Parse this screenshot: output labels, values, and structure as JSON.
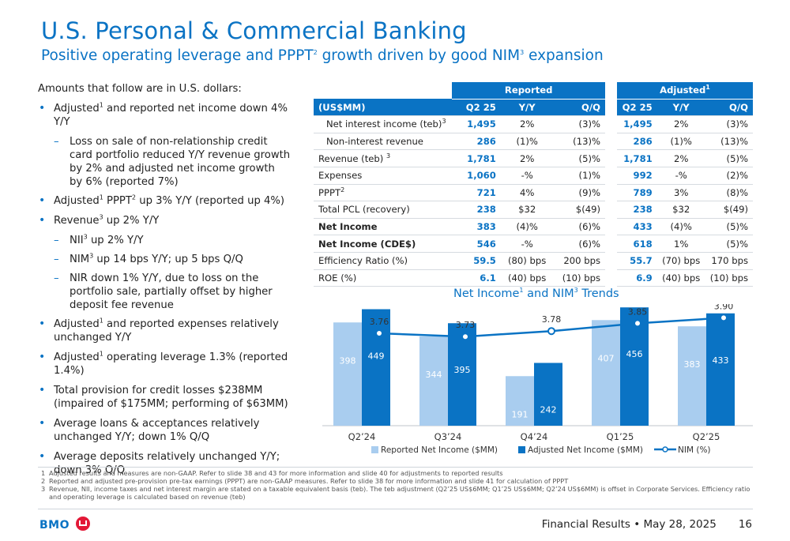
{
  "header": {
    "title": "U.S. Personal & Commercial Banking",
    "subtitle_a": "Positive operating leverage and PPPT",
    "subtitle_sup1": "2",
    "subtitle_b": " growth driven by good NIM",
    "subtitle_sup2": "3",
    "subtitle_c": " expansion"
  },
  "left": {
    "intro": "Amounts that follow are in U.S. dollars:",
    "bullets": [
      {
        "a": "Adjusted",
        "s": "1",
        "b": " and reported net income down 4% Y/Y"
      },
      {
        "a": "Loss on sale of non-relationship credit card portfolio reduced Y/Y revenue growth by 2% and adjusted net income growth by 6% (reported 7%)"
      },
      {
        "a": "Adjusted",
        "s": "1",
        "b": " PPPT",
        "s2": "2",
        "c": " up 3% Y/Y (reported up 4%)"
      },
      {
        "a": "Revenue",
        "s": "3",
        "b": " up 2% Y/Y"
      },
      {
        "a": "NII",
        "s": "3",
        "b": " up 2% Y/Y"
      },
      {
        "a": "NIM",
        "s": "3",
        "b": " up 14 bps Y/Y; up 5 bps Q/Q"
      },
      {
        "a": "NIR down 1% Y/Y, due to loss on the portfolio sale, partially offset by higher deposit fee revenue"
      },
      {
        "a": "Adjusted",
        "s": "1",
        "b": " and reported expenses relatively unchanged Y/Y"
      },
      {
        "a": "Adjusted",
        "s": "1",
        "b": " operating leverage 1.3% (reported 1.4%)"
      },
      {
        "a": "Total provision for credit losses $238MM (impaired of $175MM; performing of $63MM)"
      },
      {
        "a": "Average loans & acceptances relatively unchanged Y/Y; down 1% Q/Q"
      },
      {
        "a": "Average deposits relatively unchanged Y/Y; down 3% Q/Q"
      }
    ]
  },
  "table": {
    "reported_label": "Reported",
    "adjusted_label": "Adjusted",
    "adjusted_sup": "1",
    "unit_label": "(US$MM)",
    "cols": [
      "Q2 25",
      "Y/Y",
      "Q/Q"
    ],
    "rows": [
      {
        "label": "Net interest income (teb)",
        "sup": "3",
        "r": [
          "1,495",
          "2%",
          "(3)%"
        ],
        "a": [
          "1,495",
          "2%",
          "(3)%"
        ]
      },
      {
        "label": "Non-interest revenue",
        "sup": "",
        "r": [
          "286",
          "(1)%",
          "(13)%"
        ],
        "a": [
          "286",
          "(1)%",
          "(13)%"
        ]
      },
      {
        "label": "Revenue (teb) ",
        "sup": "3",
        "r": [
          "1,781",
          "2%",
          "(5)%"
        ],
        "a": [
          "1,781",
          "2%",
          "(5)%"
        ]
      },
      {
        "label": "Expenses",
        "sup": "",
        "r": [
          "1,060",
          "-%",
          "(1)%"
        ],
        "a": [
          "992",
          "-%",
          "(2)%"
        ]
      },
      {
        "label": "PPPT",
        "sup": "2",
        "r": [
          "721",
          "4%",
          "(9)%"
        ],
        "a": [
          "789",
          "3%",
          "(8)%"
        ]
      },
      {
        "label": "Total PCL (recovery)",
        "sup": "",
        "r": [
          "238",
          "$32",
          "$(49)"
        ],
        "a": [
          "238",
          "$32",
          "$(49)"
        ]
      },
      {
        "label": "Net Income",
        "sup": "",
        "r": [
          "383",
          "(4)%",
          "(6)%"
        ],
        "a": [
          "433",
          "(4)%",
          "(5)%"
        ]
      },
      {
        "label": "Net Income (CDE$)",
        "sup": "",
        "r": [
          "546",
          "-%",
          "(6)%"
        ],
        "a": [
          "618",
          "1%",
          "(5)%"
        ]
      },
      {
        "label": "Efficiency Ratio (%)",
        "sup": "",
        "r": [
          "59.5",
          "(80) bps",
          "200 bps"
        ],
        "a": [
          "55.7",
          "(70) bps",
          "170 bps"
        ]
      },
      {
        "label": "ROE (%)",
        "sup": "",
        "r": [
          "6.1",
          "(40) bps",
          "(10) bps"
        ],
        "a": [
          "6.9",
          "(40) bps",
          "(10) bps"
        ]
      }
    ]
  },
  "chart_title": {
    "a": "Net Income",
    "s1": "1",
    "b": " and NIM",
    "s2": "3",
    "c": " Trends"
  },
  "chart_data": {
    "type": "bar",
    "categories": [
      "Q2’24",
      "Q3’24",
      "Q4’24",
      "Q1’25",
      "Q2’25"
    ],
    "series": [
      {
        "name": "Reported Net Income ($MM)",
        "values": [
          398,
          344,
          191,
          407,
          383
        ],
        "color": "#a9cdef"
      },
      {
        "name": "Adjusted Net Income ($MM)",
        "values": [
          449,
          395,
          242,
          456,
          433
        ],
        "color": "#0a73c4"
      },
      {
        "name": "NIM (%)",
        "type": "line",
        "values": [
          3.76,
          3.73,
          3.78,
          3.85,
          3.9
        ],
        "labels": [
          "3.76",
          "3.73",
          "3.78",
          "3.85",
          "3.90"
        ],
        "color": "#0a73c4"
      }
    ],
    "legend_position": "bottom",
    "grid": false
  },
  "footnotes": [
    {
      "n": "1",
      "text": "Adjusted results and measures are non-GAAP. Refer to slide 38 and 43 for more information and slide 40 for adjustments to reported results"
    },
    {
      "n": "2",
      "text": "Reported and adjusted pre-provision pre-tax earnings (PPPT) are non-GAAP measures. Refer to slide 38 for more information and slide 41 for calculation of PPPT"
    },
    {
      "n": "3",
      "text": "Revenue, NII, income taxes and net interest margin are stated on a taxable equivalent basis (teb). The teb adjustment (Q2’25 US$6MM; Q1’25 US$6MM; Q2’24 US$6MM) is offset in Corporate Services. Efficiency ratio and operating leverage is calculated based on revenue (teb)"
    }
  ],
  "footer": {
    "logo": "BMO",
    "text": "Financial Results • May 28, 2025",
    "page": "16"
  },
  "colors": {
    "brand_blue": "#0a73c4",
    "light_blue": "#a9cdef",
    "logo_red": "#e31837"
  }
}
